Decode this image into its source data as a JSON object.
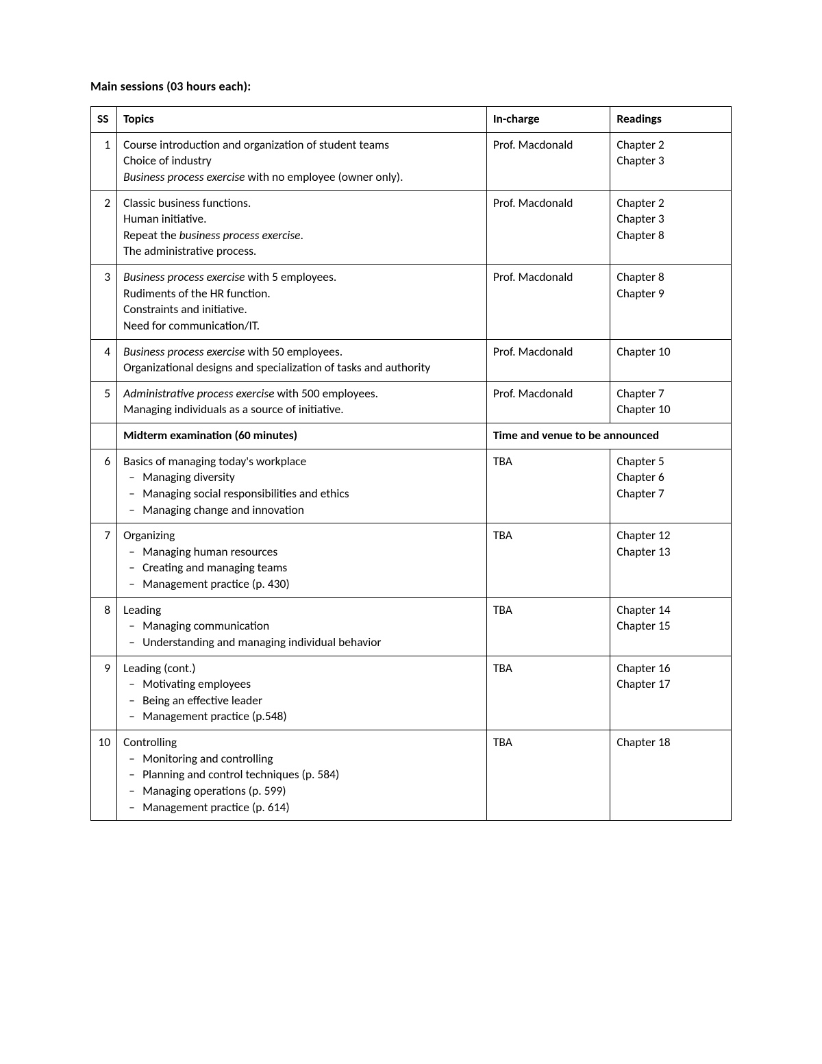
{
  "heading": "Main sessions (03 hours each):",
  "columns": {
    "ss": "SS",
    "topics": "Topics",
    "incharge": "In-charge",
    "readings": "Readings"
  },
  "midterm": {
    "label": "Midterm examination (60 minutes)",
    "note": "Time and venue to be announced"
  },
  "rows": [
    {
      "ss": "1",
      "topics": [
        {
          "segments": [
            {
              "text": "Course introduction and organization of student teams"
            }
          ]
        },
        {
          "segments": [
            {
              "text": "Choice of industry"
            }
          ]
        },
        {
          "segments": [
            {
              "text": "Business process exercise",
              "italic": true
            },
            {
              "text": " with no employee (owner only)."
            }
          ]
        }
      ],
      "incharge": "Prof. Macdonald",
      "readings": [
        "Chapter 2",
        "Chapter 3"
      ]
    },
    {
      "ss": "2",
      "topics": [
        {
          "segments": [
            {
              "text": "Classic business functions."
            }
          ]
        },
        {
          "segments": [
            {
              "text": "Human initiative."
            }
          ]
        },
        {
          "segments": [
            {
              "text": "Repeat the "
            },
            {
              "text": "business process exercise",
              "italic": true
            },
            {
              "text": "."
            }
          ]
        },
        {
          "segments": [
            {
              "text": "The administrative process."
            }
          ]
        }
      ],
      "incharge": "Prof. Macdonald",
      "readings": [
        "Chapter 2",
        "Chapter 3",
        "Chapter 8"
      ]
    },
    {
      "ss": "3",
      "topics": [
        {
          "segments": [
            {
              "text": "Business process exercise",
              "italic": true
            },
            {
              "text": " with 5 employees."
            }
          ]
        },
        {
          "segments": [
            {
              "text": "Rudiments of the HR function."
            }
          ]
        },
        {
          "segments": [
            {
              "text": "Constraints and initiative."
            }
          ]
        },
        {
          "segments": [
            {
              "text": "Need for communication/IT."
            }
          ]
        }
      ],
      "incharge": "Prof. Macdonald",
      "readings": [
        "Chapter 8",
        "Chapter 9"
      ]
    },
    {
      "ss": "4",
      "topics": [
        {
          "segments": [
            {
              "text": "Business process exercise",
              "italic": true
            },
            {
              "text": " with 50 employees."
            }
          ]
        },
        {
          "segments": [
            {
              "text": "Organizational designs and specialization of tasks and authority"
            }
          ]
        }
      ],
      "incharge": "Prof. Macdonald",
      "readings": [
        "Chapter 10"
      ]
    },
    {
      "ss": "5",
      "topics": [
        {
          "segments": [
            {
              "text": "Administrative process exercise",
              "italic": true
            },
            {
              "text": " with 500 employees."
            }
          ]
        },
        {
          "segments": [
            {
              "text": "Managing individuals as a source of initiative."
            }
          ]
        }
      ],
      "incharge": "Prof. Macdonald",
      "readings": [
        "Chapter 7",
        "Chapter 10"
      ]
    },
    {
      "ss": "6",
      "topics": [
        {
          "segments": [
            {
              "text": "Basics of managing today's workplace"
            }
          ]
        }
      ],
      "bullets": [
        "Managing diversity",
        "Managing social responsibilities and ethics",
        "Managing change and innovation"
      ],
      "incharge": "TBA",
      "readings": [
        "Chapter 5",
        "Chapter 6",
        "Chapter 7"
      ]
    },
    {
      "ss": "7",
      "topics": [
        {
          "segments": [
            {
              "text": "Organizing"
            }
          ]
        }
      ],
      "bullets": [
        "Managing human resources",
        "Creating and managing teams",
        "Management practice (p. 430)"
      ],
      "incharge": "TBA",
      "readings": [
        "Chapter 12",
        "Chapter 13"
      ]
    },
    {
      "ss": "8",
      "topics": [
        {
          "segments": [
            {
              "text": "Leading"
            }
          ]
        }
      ],
      "bullets": [
        "Managing communication",
        "Understanding and managing individual behavior"
      ],
      "incharge": "TBA",
      "readings": [
        "Chapter 14",
        "Chapter 15"
      ]
    },
    {
      "ss": "9",
      "topics": [
        {
          "segments": [
            {
              "text": "Leading (cont.)"
            }
          ]
        }
      ],
      "bullets": [
        "Motivating employees",
        "Being an effective leader",
        "Management practice (p.548)"
      ],
      "incharge": "TBA",
      "readings": [
        "Chapter 16",
        "Chapter 17"
      ]
    },
    {
      "ss": "10",
      "topics": [
        {
          "segments": [
            {
              "text": "Controlling"
            }
          ]
        }
      ],
      "bullets": [
        "Monitoring and controlling",
        "Planning and control techniques (p. 584)",
        "Managing operations (p. 599)",
        "Management practice (p. 614)"
      ],
      "incharge": "TBA",
      "readings": [
        "Chapter 18"
      ]
    }
  ]
}
